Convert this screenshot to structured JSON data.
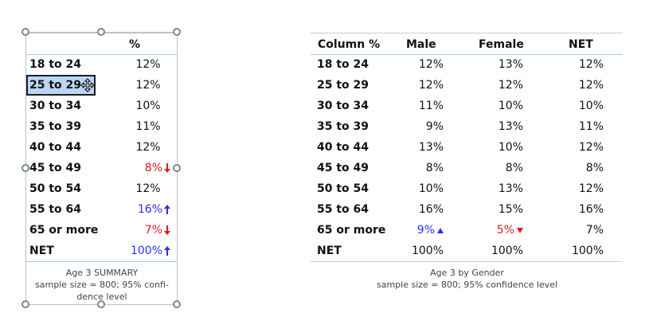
{
  "left_table": {
    "header": "%",
    "rows": [
      {
        "label": "18 to 24",
        "value": "12%"
      },
      {
        "label": "25 to 29",
        "value": "12%"
      },
      {
        "label": "30 to 34",
        "value": "10%"
      },
      {
        "label": "35 to 39",
        "value": "11%"
      },
      {
        "label": "40 to 44",
        "value": "12%"
      },
      {
        "label": "45 to 49",
        "value": "8%",
        "indicator": "down-arrow-icon",
        "color": "#e01b1b"
      },
      {
        "label": "50 to 54",
        "value": "12%"
      },
      {
        "label": "55 to 64",
        "value": "16%",
        "indicator": "up-arrow-icon",
        "color": "#2b2ef2"
      },
      {
        "label": "65 or more",
        "value": "7%",
        "indicator": "down-arrow-icon",
        "color": "#e01b1b"
      },
      {
        "label": "NET",
        "value": "100%",
        "indicator": "up-arrow-icon",
        "color": "#2b2ef2"
      }
    ],
    "caption_title": "Age 3 SUMMARY",
    "caption_line_1": "sample size = 800; 95% confi-",
    "caption_line_2": "dence level",
    "selected_cell": "25 to 29"
  },
  "right_table": {
    "headers": [
      "Column %",
      "Male",
      "Female",
      "NET"
    ],
    "rows": [
      {
        "label": "18 to 24",
        "male": "12%",
        "female": "13%",
        "net": "12%"
      },
      {
        "label": "25 to 29",
        "male": "12%",
        "female": "12%",
        "net": "12%"
      },
      {
        "label": "30 to 34",
        "male": "11%",
        "female": "10%",
        "net": "10%"
      },
      {
        "label": "35 to 39",
        "male": "9%",
        "female": "13%",
        "net": "11%"
      },
      {
        "label": "40 to 44",
        "male": "13%",
        "female": "10%",
        "net": "12%"
      },
      {
        "label": "45 to 49",
        "male": "8%",
        "female": "8%",
        "net": "8%"
      },
      {
        "label": "50 to 54",
        "male": "10%",
        "female": "13%",
        "net": "12%"
      },
      {
        "label": "55 to 64",
        "male": "16%",
        "female": "15%",
        "net": "16%"
      },
      {
        "label": "65 or more",
        "male": "9%",
        "male_indicator": "up-triangle-icon",
        "male_color": "#2b2ef2",
        "female": "5%",
        "female_indicator": "down-triangle-icon",
        "female_color": "#e01b1b",
        "net": "7%"
      },
      {
        "label": "NET",
        "male": "100%",
        "female": "100%",
        "net": "100%"
      }
    ],
    "caption_title": "Age 3 by Gender",
    "caption_line": "sample size = 800; 95% confidence level"
  },
  "colors": {
    "accent_line": "#9dcaf0",
    "selection_fill": "#b9d6f6",
    "positive": "#2b2ef2",
    "negative": "#e01b1b",
    "handle_border": "#7b8791"
  }
}
